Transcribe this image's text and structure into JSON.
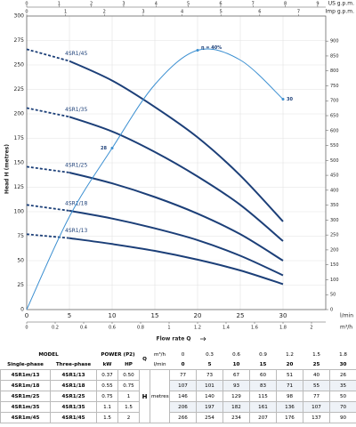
{
  "chart_data": {
    "type": "line",
    "ylabel": "Head H (metres)",
    "xlabel": "Flow rate Q",
    "x_unit": "l/min",
    "x": [
      0,
      5,
      10,
      15,
      20,
      25,
      30
    ],
    "xlim": [
      0,
      35
    ],
    "xticks": [
      0,
      5,
      10,
      15,
      20,
      25,
      30
    ],
    "ylim": [
      0,
      300
    ],
    "yticks": [
      0,
      25,
      50,
      75,
      100,
      125,
      150,
      175,
      200,
      225,
      250,
      275,
      300
    ],
    "y2lim": [
      0,
      984
    ],
    "y2ticks": [
      0,
      50,
      100,
      150,
      200,
      250,
      300,
      350,
      400,
      450,
      500,
      550,
      600,
      650,
      700,
      750,
      800,
      850,
      900
    ],
    "grid": true,
    "top_axes": [
      {
        "label": "US g.p.m.",
        "lim": [
          0,
          9.25
        ],
        "ticks": [
          0,
          1,
          2,
          3,
          4,
          5,
          6,
          7,
          8,
          9
        ]
      },
      {
        "label": "Imp g.p.m.",
        "lim": [
          0,
          7.7
        ],
        "ticks": [
          0,
          1,
          2,
          3,
          4,
          5,
          6,
          7
        ]
      }
    ],
    "bottom_axis": {
      "label": "m³/h",
      "lim": [
        0,
        2.1
      ],
      "ticks": [
        0,
        0.2,
        0.4,
        0.6,
        0.8,
        1,
        1.2,
        1.4,
        1.6,
        1.8,
        2
      ]
    },
    "series": [
      {
        "name": "4SR1/45",
        "color": "#1c3f78",
        "values": [
          266,
          254,
          234,
          207,
          176,
          137,
          90
        ]
      },
      {
        "name": "4SR1/35",
        "color": "#1c3f78",
        "values": [
          206,
          197,
          182,
          161,
          136,
          107,
          70
        ]
      },
      {
        "name": "4SR1/25",
        "color": "#1c3f78",
        "values": [
          146,
          140,
          129,
          115,
          98,
          77,
          50
        ]
      },
      {
        "name": "4SR1/18",
        "color": "#1c3f78",
        "values": [
          107,
          101,
          93,
          83,
          71,
          55,
          35
        ]
      },
      {
        "name": "4SR1/13",
        "color": "#1c3f78",
        "values": [
          77,
          73,
          67,
          60,
          51,
          40,
          26
        ]
      }
    ],
    "efficiency": {
      "color": "#3b8fd1",
      "values": [
        0,
        95,
        165,
        230,
        265,
        255,
        215
      ],
      "annotations": [
        "28",
        "η = 40%",
        "30"
      ]
    }
  },
  "table": {
    "model_header": "MODEL",
    "power_header": "POWER (P2)",
    "columns": [
      "Single-phase",
      "Three-phase",
      "kW",
      "HP"
    ],
    "q_label": "Q",
    "q_units": [
      "m³/h",
      "l/min"
    ],
    "q_values": [
      [
        "0",
        "0.3",
        "0.6",
        "0.9",
        "1.2",
        "1.5",
        "1.8"
      ],
      [
        "0",
        "5",
        "10",
        "15",
        "20",
        "25",
        "30"
      ]
    ],
    "h_label": "H",
    "h_unit": "metres",
    "rows": [
      [
        "4SR1m/13",
        "4SR1/13",
        "0.37",
        "0.50",
        "77",
        "73",
        "67",
        "60",
        "51",
        "40",
        "26"
      ],
      [
        "4SR1m/18",
        "4SR1/18",
        "0.55",
        "0.75",
        "107",
        "101",
        "93",
        "83",
        "71",
        "55",
        "35"
      ],
      [
        "4SR1m/25",
        "4SR1/25",
        "0.75",
        "1",
        "146",
        "140",
        "129",
        "115",
        "98",
        "77",
        "50"
      ],
      [
        "4SR1m/35",
        "4SR1/35",
        "1.1",
        "1.5",
        "206",
        "197",
        "182",
        "161",
        "136",
        "107",
        "70"
      ],
      [
        "4SR1m/45",
        "4SR1/45",
        "1.5",
        "2",
        "266",
        "254",
        "234",
        "207",
        "176",
        "137",
        "90"
      ]
    ]
  }
}
